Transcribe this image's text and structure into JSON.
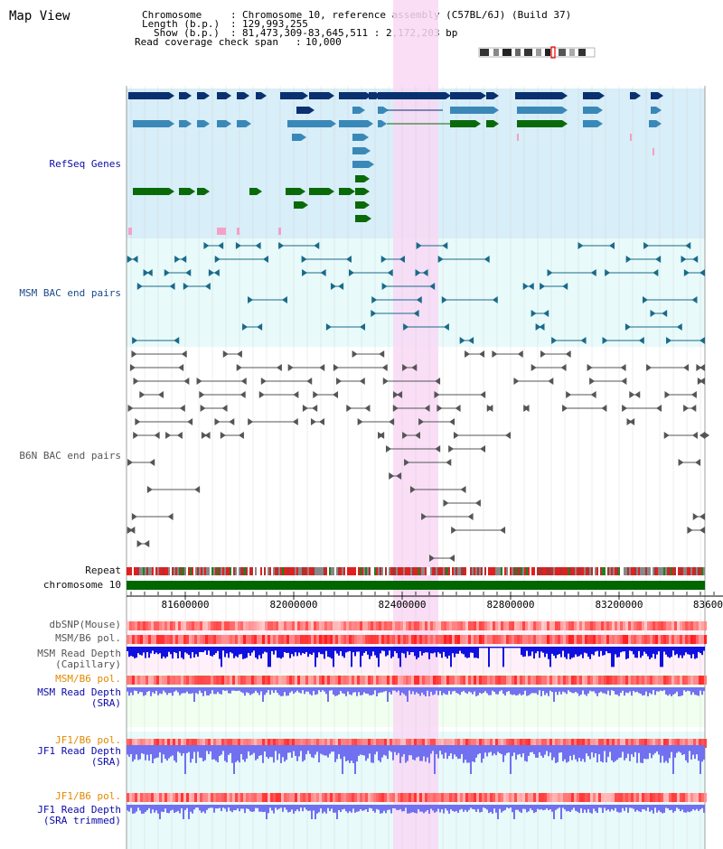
{
  "header": {
    "title": "Map View",
    "chromosome_key": "Chromosome",
    "chromosome_val": "Chromosome 10, reference assembly (C57BL/6J) (Build 37)",
    "length_key": "Length (b.p.)",
    "length_val": "129,993,255",
    "show_key": "Show (b.p.)",
    "show_val": "81,473,309-83,645,511 : 2,172,203 bp",
    "span_key": "Read coverage check span",
    "span_val": "10,000"
  },
  "tracks": {
    "refseq": "RefSeq Genes",
    "msm_bac": "MSM BAC end pairs",
    "b6n_bac": "B6N BAC end pairs",
    "repeat": "Repeat",
    "chromosome": "chromosome 10",
    "dbsnp": "dbSNP(Mouse)",
    "msm_b6_pol_1": "MSM/B6 pol.",
    "msm_depth_cap_1": "MSM Read Depth",
    "msm_depth_cap_2": "(Capillary)",
    "msm_b6_pol_2": "MSM/B6 pol.",
    "msm_depth_sra_1": "MSM Read Depth",
    "msm_depth_sra_2": "(SRA)",
    "jf1_pol_1": "JF1/B6 pol.",
    "jf1_depth_1": "JF1 Read Depth",
    "jf1_depth_2": "(SRA)",
    "jf1_pol_2": "JF1/B6 pol.",
    "jf1_trim_1": "JF1 Read Depth",
    "jf1_trim_2": "(SRA trimmed)"
  },
  "axis": {
    "ticks": [
      "81600000",
      "82000000",
      "82400000",
      "82800000",
      "83200000",
      "83600"
    ]
  },
  "colors": {
    "refseq_bg": "#d8eef8",
    "msm_bg": "#e8fafa",
    "highlight": "#f8d8f4",
    "chromosome_bar": "#006600",
    "gene_dark": "#0a3070",
    "gene_mid": "#3a88b8",
    "gene_green": "#0a6a0a",
    "depth_blue": "#1010e0",
    "depth_light": "#7070f0"
  }
}
